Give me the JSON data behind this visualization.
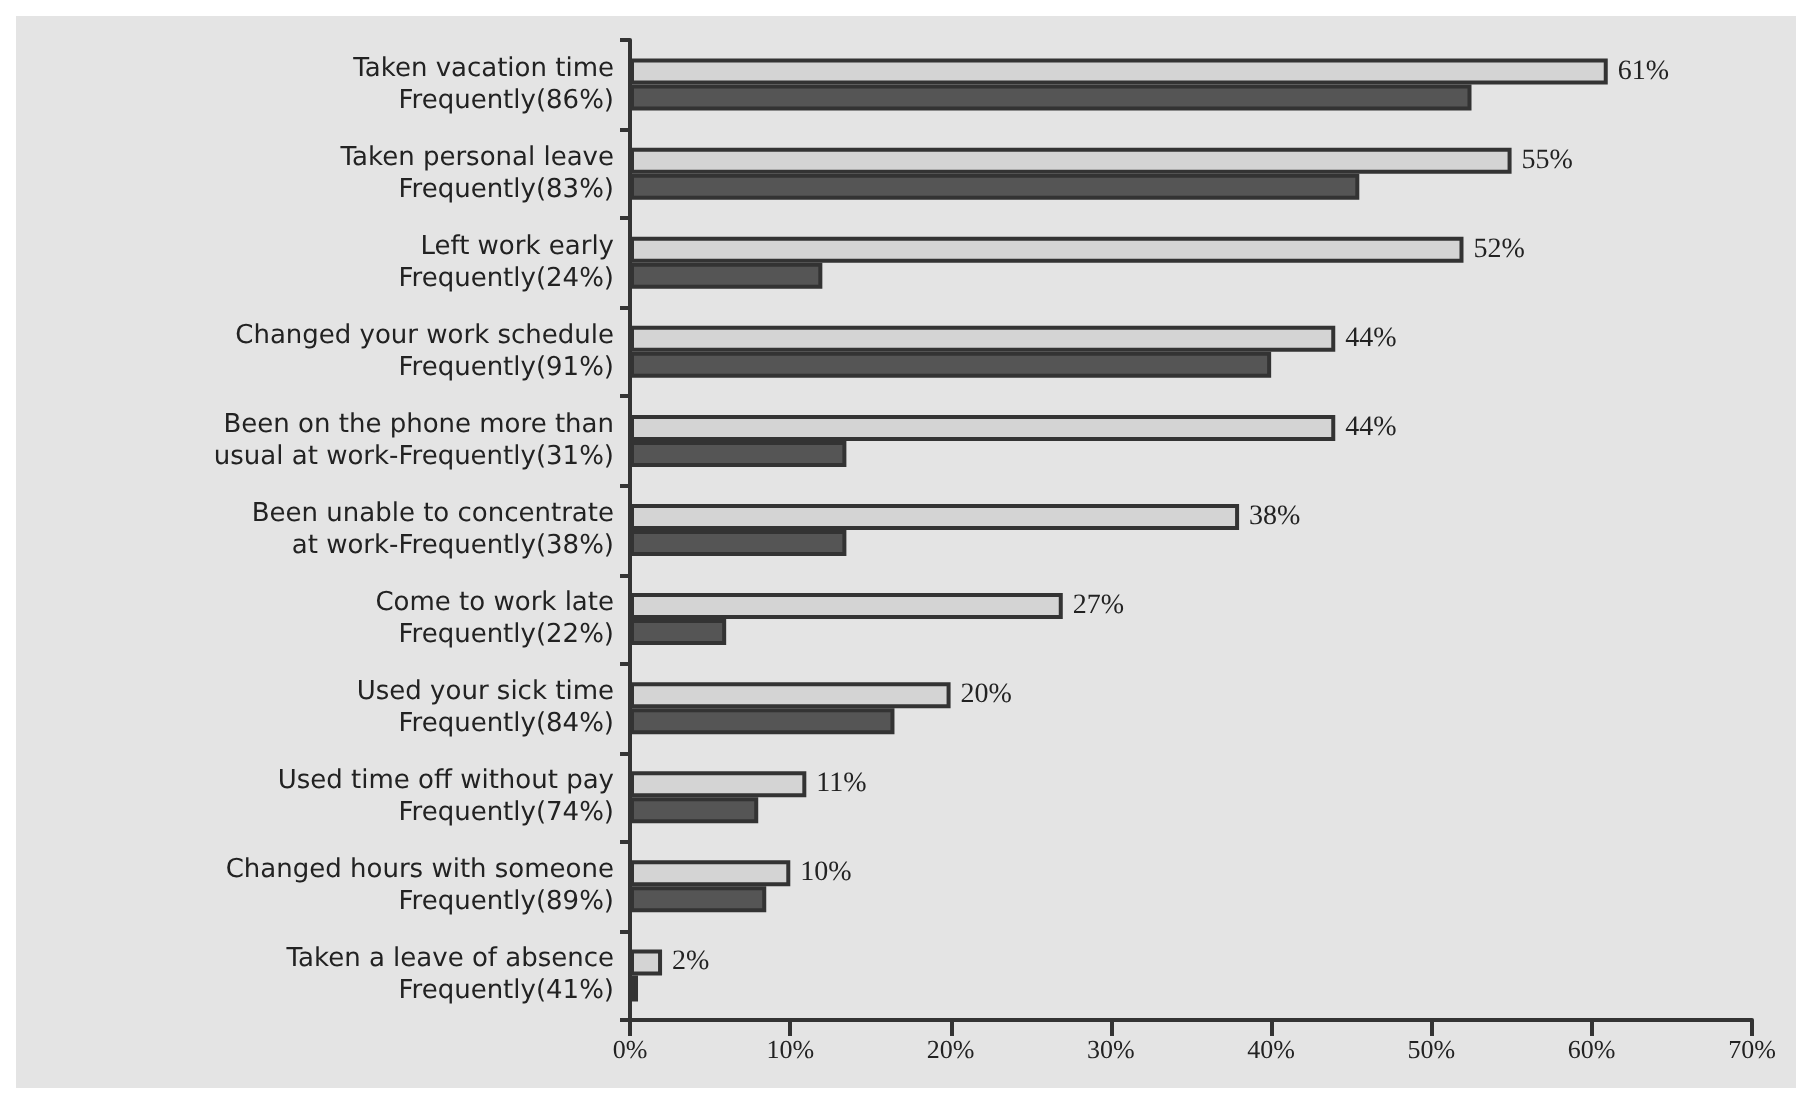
{
  "chart_data": {
    "type": "bar",
    "orientation": "horizontal",
    "categories": [
      "Taken vacation time\nFrequently(86%)",
      "Taken personal leave\nFrequently(83%)",
      "Left work early\nFrequently(24%)",
      "Changed your work schedule\nFrequently(91%)",
      "Been on the phone more than\nusual at work-Frequently(31%)",
      "Been unable to concentrate\nat work-Frequently(38%)",
      "Come to work late\nFrequently(22%)",
      "Used your sick time\nFrequently(84%)",
      "Used time off without pay\nFrequently(74%)",
      "Changed hours with someone\nFrequently(89%)",
      "Taken a leave of absence\nFrequently(41%)"
    ],
    "series": [
      {
        "color": "#d4d4d4",
        "values": [
          61,
          55,
          52,
          44,
          44,
          38,
          27,
          20,
          11,
          10,
          2
        ],
        "value_labels": [
          "61%",
          "55%",
          "52%",
          "44%",
          "44%",
          "38%",
          "27%",
          "20%",
          "11%",
          "10%",
          "2%"
        ]
      },
      {
        "color": "#555555",
        "values": [
          52.5,
          45.5,
          12,
          40,
          13.5,
          13.5,
          6,
          16.5,
          8,
          8.5,
          0.5
        ]
      }
    ],
    "xlim": [
      0,
      70
    ],
    "xticks": [
      {
        "value": 0,
        "label": "0%"
      },
      {
        "value": 10,
        "label": "10%"
      },
      {
        "value": 20,
        "label": "20%"
      },
      {
        "value": 30,
        "label": "30%"
      },
      {
        "value": 40,
        "label": "40%"
      },
      {
        "value": 50,
        "label": "50%"
      },
      {
        "value": 60,
        "label": "60%"
      },
      {
        "value": 70,
        "label": "70%"
      }
    ],
    "grid": false
  }
}
